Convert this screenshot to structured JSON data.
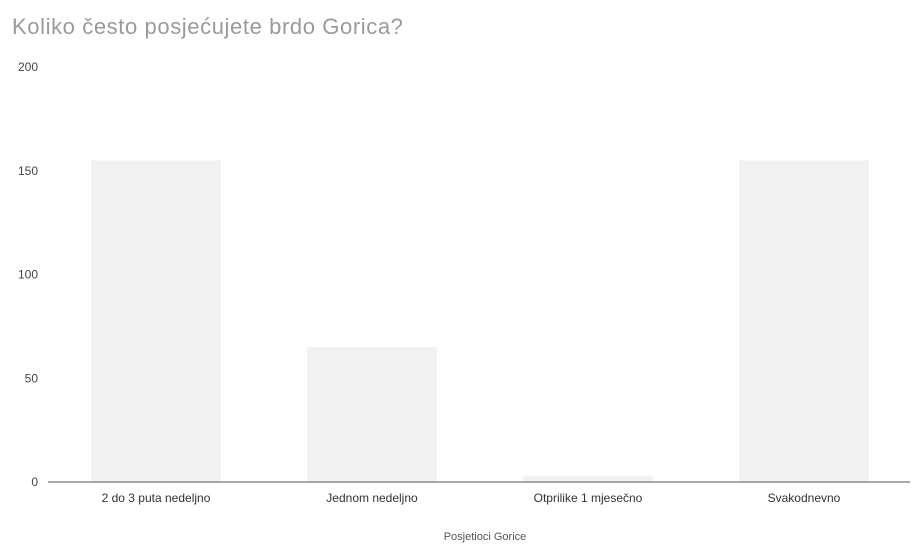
{
  "chart_data": {
    "type": "bar",
    "title": "Koliko često posjećujete brdo Gorica?",
    "xlabel": "Posjetioci Gorice",
    "ylabel": "",
    "ylim": [
      0,
      200
    ],
    "yticks": [
      0,
      50,
      100,
      150,
      200
    ],
    "grid": false,
    "categories": [
      "2 do 3 puta nedeljno",
      "Jednom nedeljno",
      "Otprilike 1 mjesečno",
      "Svakodnevno"
    ],
    "values": [
      155,
      65,
      3,
      155
    ],
    "bar_color": "#f1f1f1",
    "axis_color": "#555555"
  }
}
